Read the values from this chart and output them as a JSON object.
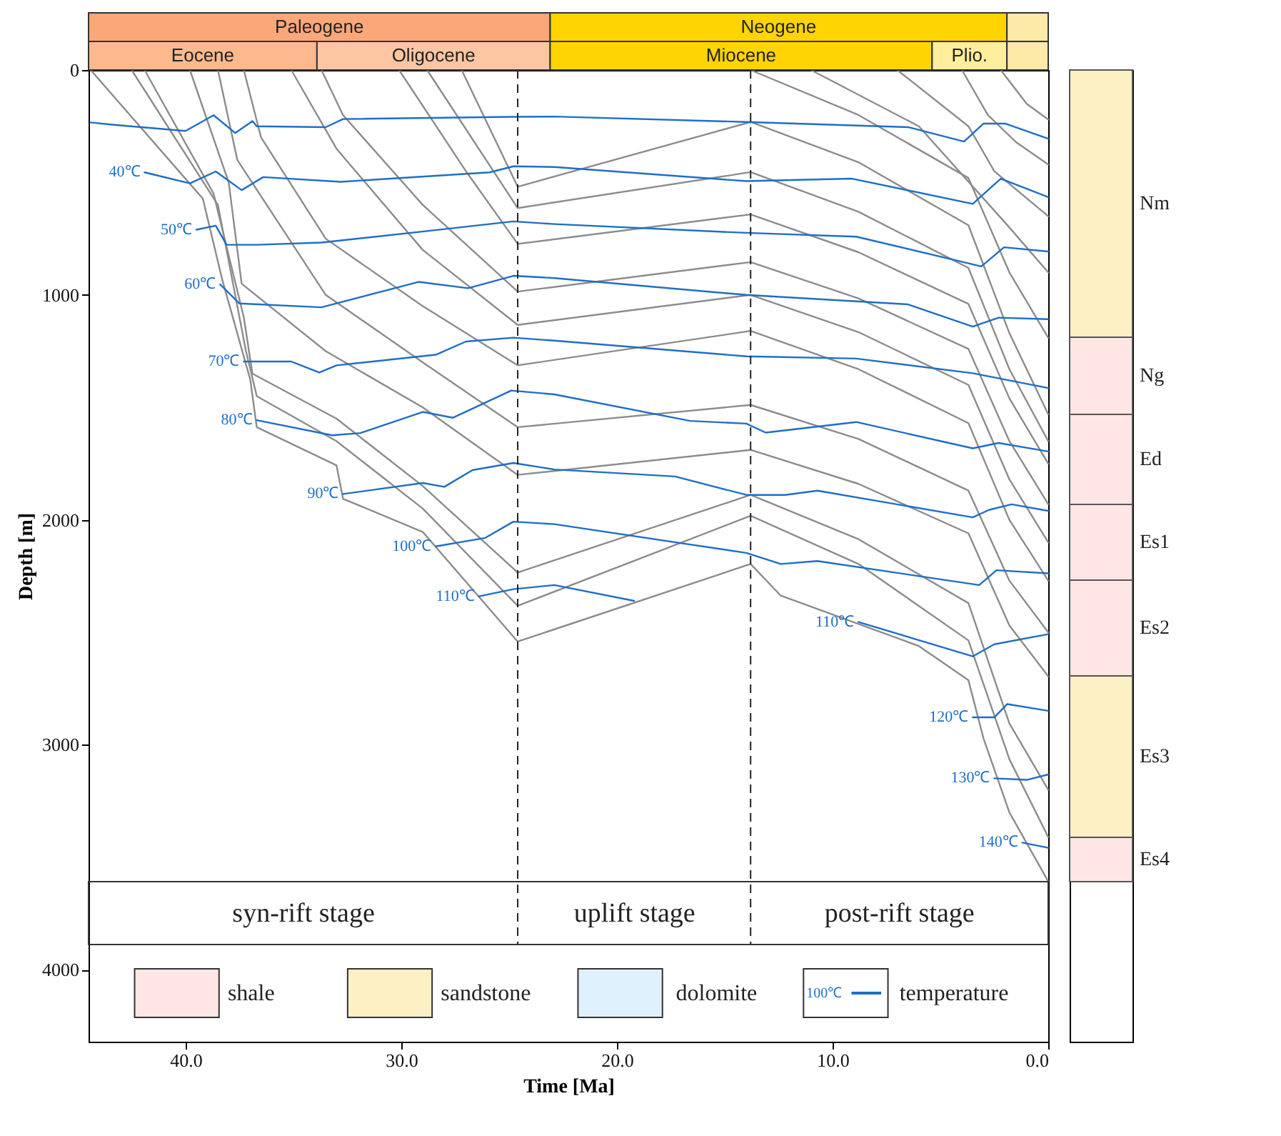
{
  "chart_data": {
    "type": "line",
    "xlabel": "Time [Ma]",
    "ylabel": "Depth [m]",
    "xlim": [
      44.5,
      0
    ],
    "ylim": [
      4320,
      0
    ],
    "xticks": [
      {
        "value": 40,
        "label": "40.0"
      },
      {
        "value": 30,
        "label": "30.0"
      },
      {
        "value": 20,
        "label": "20.0"
      },
      {
        "value": 10,
        "label": "10.0"
      },
      {
        "value": 0,
        "label": "0.0"
      }
    ],
    "yticks": [
      0,
      1000,
      2000,
      3000,
      4000
    ],
    "legend": false,
    "line_style": "solid",
    "series": [
      {
        "color": "#8c8c8c",
        "x": [
          44.4,
          39.2,
          38.3,
          37.0,
          36.7,
          33.0,
          32.7,
          29.0,
          24.6,
          13.8,
          12.4,
          6.0,
          3.7,
          3.0,
          1.8,
          0
        ],
        "values": [
          0,
          572,
          932,
          1377,
          1588,
          1758,
          1906,
          2054,
          2541,
          2196,
          2337,
          2561,
          2713,
          2972,
          3301,
          3607
        ]
      },
      {
        "color": "#8c8c8c",
        "x": [
          42.5,
          38.5,
          37.2,
          36.7,
          33,
          29,
          24.6,
          13.8,
          8.8,
          3.7,
          1.8,
          0
        ],
        "values": [
          0,
          600,
          1250,
          1450,
          1650,
          1950,
          2382,
          1982,
          2196,
          2536,
          3064,
          3410
        ]
      },
      {
        "color": "#8c8c8c",
        "x": [
          41.9,
          38.7,
          37.3,
          36.9,
          33,
          29,
          24.6,
          13.8,
          8.8,
          3.7,
          1.8,
          0
        ],
        "values": [
          0,
          550,
          1100,
          1350,
          1550,
          1850,
          2234,
          1889,
          2086,
          2370,
          2905,
          3200
        ]
      },
      {
        "color": "#8c8c8c",
        "x": [
          39.8,
          38.0,
          37.4,
          33.5,
          29,
          24.6,
          13.8,
          8.8,
          3.7,
          1.8,
          0
        ],
        "values": [
          0,
          500,
          950,
          1250,
          1500,
          1800,
          1689,
          1840,
          2060,
          2470,
          2695
        ]
      },
      {
        "color": "#8c8c8c",
        "x": [
          38.5,
          37.6,
          33.5,
          29,
          24.6,
          13.8,
          8.8,
          3.7,
          1.8,
          0
        ],
        "values": [
          0,
          400,
          1000,
          1300,
          1588,
          1489,
          1640,
          1870,
          2270,
          2500
        ]
      },
      {
        "color": "#8c8c8c",
        "x": [
          37.3,
          36.5,
          33.5,
          29,
          24.6,
          13.8,
          8.8,
          3.7,
          1.8,
          0
        ],
        "values": [
          0,
          300,
          750,
          1050,
          1313,
          1160,
          1330,
          1570,
          2000,
          2270
        ]
      },
      {
        "color": "#8c8c8c",
        "x": [
          35.1,
          33,
          29,
          24.6,
          13.8,
          8.8,
          3.7,
          1.8,
          0
        ],
        "values": [
          0,
          350,
          800,
          1133,
          1000,
          1165,
          1400,
          1820,
          2100
        ]
      },
      {
        "color": "#8c8c8c",
        "x": [
          33.7,
          32.7,
          29,
          24.6,
          13.8,
          8.8,
          3.7,
          1.8,
          0
        ],
        "values": [
          0,
          200,
          600,
          985,
          854,
          1015,
          1240,
          1650,
          1930
        ]
      },
      {
        "color": "#8c8c8c",
        "x": [
          30.1,
          27,
          24.6,
          13.8,
          8.8,
          3.7,
          1.8,
          0
        ],
        "values": [
          0,
          450,
          773,
          642,
          810,
          1040,
          1460,
          1750
        ]
      },
      {
        "color": "#8c8c8c",
        "x": [
          28.8,
          24.6,
          13.8,
          8.8,
          3.7,
          1.8,
          0
        ],
        "values": [
          0,
          614,
          454,
          630,
          880,
          1330,
          1650
        ]
      },
      {
        "color": "#8c8c8c",
        "x": [
          27.2,
          24.6,
          13.8,
          8.8,
          3.7,
          1.8,
          0
        ],
        "values": [
          0,
          519,
          231,
          410,
          690,
          1170,
          1530
        ]
      },
      {
        "color": "#8c8c8c",
        "x": [
          13.8,
          8.8,
          3.7,
          1.8,
          0
        ],
        "values": [
          0,
          200,
          480,
          900,
          1190
        ]
      },
      {
        "color": "#8c8c8c",
        "x": [
          11,
          6,
          3.2,
          1.8,
          0
        ],
        "values": [
          0,
          250,
          550,
          700,
          900
        ]
      },
      {
        "color": "#8c8c8c",
        "x": [
          7,
          3.7,
          2.5,
          0
        ],
        "values": [
          0,
          250,
          450,
          650
        ]
      },
      {
        "color": "#8c8c8c",
        "x": [
          4,
          2.8,
          1.5,
          0
        ],
        "values": [
          0,
          200,
          320,
          420
        ]
      },
      {
        "color": "#8c8c8c",
        "x": [
          2.2,
          1,
          0
        ],
        "values": [
          0,
          150,
          220
        ]
      },
      {
        "color": "#1e6ec8",
        "x": [
          44.4,
          43.4,
          40,
          38.7,
          37.7,
          36.9,
          36.7,
          33.5,
          32.7,
          24.8,
          22.9,
          14,
          6.5,
          3.9,
          3,
          2,
          0
        ],
        "values": [
          233,
          243,
          271,
          201,
          280,
          227,
          250,
          254,
          218,
          208,
          207,
          231,
          254,
          318,
          238,
          238,
          305
        ]
      },
      {
        "name": "40℃",
        "color": "#1e6ec8",
        "x": [
          41.9,
          39.8,
          38.6,
          37.4,
          36.4,
          32.8,
          25.9,
          24.8,
          22.9,
          14.0,
          9.1,
          3.5,
          2.2,
          0
        ],
        "values": [
          455,
          504,
          451,
          534,
          476,
          497,
          455,
          428,
          431,
          494,
          483,
          595,
          483,
          565
        ]
      },
      {
        "name": "50℃",
        "color": "#1e6ec8",
        "x": [
          39.5,
          38.6,
          38.1,
          36.7,
          33.7,
          28.8,
          24.8,
          22.9,
          14.0,
          8.9,
          3.1,
          2.05,
          0
        ],
        "values": [
          710,
          692,
          777,
          777,
          767,
          716,
          673,
          685,
          724,
          741,
          873,
          788,
          807
        ]
      },
      {
        "name": "60℃",
        "color": "#1e6ec8",
        "x": [
          38.4,
          37.5,
          33.7,
          29.2,
          26.9,
          24.8,
          22.9,
          14.0,
          6.5,
          3.5,
          2.3,
          0
        ],
        "values": [
          953,
          1038,
          1055,
          942,
          970,
          915,
          925,
          1000,
          1042,
          1141,
          1101,
          1108
        ]
      },
      {
        "name": "70℃",
        "color": "#1e6ec8",
        "x": [
          37.3,
          35.1,
          33.8,
          33.0,
          28.4,
          27.0,
          24.8,
          22.9,
          14.0,
          8.9,
          3.5,
          0
        ],
        "values": [
          1296,
          1296,
          1345,
          1313,
          1266,
          1207,
          1190,
          1203,
          1273,
          1283,
          1348,
          1414
        ]
      },
      {
        "name": "80℃",
        "color": "#1e6ec8",
        "x": [
          36.7,
          33.2,
          31.9,
          29.0,
          27.6,
          24.9,
          22.9,
          16.6,
          14.0,
          13.1,
          8.9,
          3.5,
          2.3,
          0
        ],
        "values": [
          1557,
          1624,
          1614,
          1520,
          1546,
          1425,
          1442,
          1560,
          1572,
          1612,
          1565,
          1682,
          1658,
          1696
        ]
      },
      {
        "name": "90℃",
        "color": "#1e6ec8",
        "x": [
          32.7,
          29.0,
          28.0,
          26.7,
          24.8,
          22.9,
          17.3,
          14.0,
          12.2,
          10.7,
          3.5,
          2.75,
          1.7,
          0
        ],
        "values": [
          1885,
          1836,
          1853,
          1779,
          1747,
          1776,
          1807,
          1889,
          1889,
          1870,
          1989,
          1956,
          1931,
          1960
        ]
      },
      {
        "name": "100℃",
        "color": "#1e6ec8",
        "x": [
          28.4,
          26.1,
          24.8,
          22.9,
          14.0,
          12.4,
          10.7,
          3.2,
          2.4,
          0
        ],
        "values": [
          2118,
          2080,
          2008,
          2019,
          2147,
          2196,
          2183,
          2290,
          2224,
          2238
        ]
      },
      {
        "name": "110℃",
        "color": "#1e6ec8",
        "x": [
          26.4,
          24.8,
          22.9,
          19.2
        ],
        "values": [
          2340,
          2308,
          2290,
          2360
        ]
      },
      {
        "name": "110℃",
        "color": "#1e6ec8",
        "x": [
          8.8,
          3.5,
          2.5,
          0
        ],
        "values": [
          2454,
          2607,
          2553,
          2508
        ]
      },
      {
        "name": "120℃",
        "color": "#1e6ec8",
        "x": [
          3.5,
          2.5,
          1.9,
          0
        ],
        "values": [
          2878,
          2878,
          2819,
          2849
        ]
      },
      {
        "name": "130℃",
        "color": "#1e6ec8",
        "x": [
          2.5,
          1.0,
          0
        ],
        "values": [
          3149,
          3156,
          3132
        ]
      },
      {
        "name": "140℃",
        "color": "#1e6ec8",
        "x": [
          1.2,
          0
        ],
        "values": [
          3435,
          3458
        ]
      }
    ],
    "ref_lines": [
      {
        "axis": "x",
        "value": 24.6,
        "line_style": "dashed",
        "color": "#222222"
      },
      {
        "axis": "x",
        "value": 13.8,
        "line_style": "dashed",
        "color": "#222222"
      }
    ],
    "annotations": [
      "Paleogene",
      "Neogene",
      "Eocene",
      "Oligocene",
      "Miocene",
      "Plio.",
      "syn-rift stage",
      "uplift stage",
      "post-rift stage",
      "Nm",
      "Ng",
      "Ed",
      "Es1",
      "Es2",
      "Es3",
      "Es4",
      "shale",
      "sandstone",
      "dolomite",
      "100℃",
      "temperature"
    ]
  }
}
